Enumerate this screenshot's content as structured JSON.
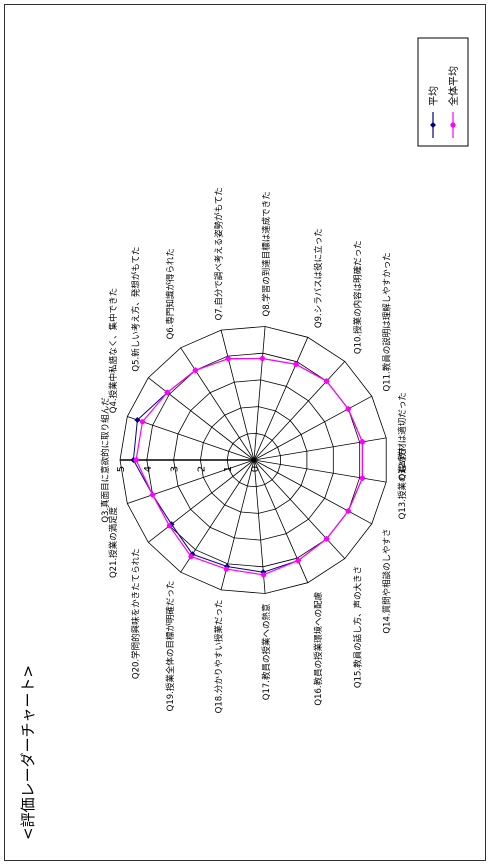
{
  "chart_data": {
    "type": "radar",
    "title": "<評価レーダーチャート>",
    "axes": [
      "Q3.真面目に意欲的に取り組んだ",
      "Q4.授業中私語なく、集中できた",
      "Q5.新しい考え方、発想がもてた",
      "Q6.専門知識が得られた",
      "Q7.自分で調べ考える姿勢がもてた",
      "Q8.学習の到達目標は達成できた",
      "Q9.シラバスは役に立った",
      "Q10.授業の内容は明確だった",
      "Q11.教員の説明は理解しやすかった",
      "Q12.教材は適切だった",
      "Q13.授業の進め方",
      "Q14.質問や相談のしやすさ",
      "Q15.教員の話し方、声の大きさ",
      "Q16.教員の授業環境への配慮",
      "Q17.教員の授業への熱意",
      "Q18.分かりやすい授業だった",
      "Q19.授業全体の目標が明確だった",
      "Q20.学問的興味をかきたてられた",
      "Q21.授業の満足度"
    ],
    "tick_labels": [
      "0",
      "1",
      "2",
      "3",
      "4",
      "5"
    ],
    "rlim": [
      0,
      5
    ],
    "series": [
      {
        "name": "平均",
        "color": "#000080",
        "marker": "diamond",
        "values": [
          4.5,
          4.6,
          4.1,
          4.0,
          3.9,
          3.8,
          3.9,
          4.0,
          4.0,
          4.1,
          4.1,
          4.0,
          4.0,
          4.1,
          4.2,
          4.1,
          4.2,
          3.9,
          4.0
        ]
      },
      {
        "name": "全体平均",
        "color": "#ff00ff",
        "marker": "circle",
        "values": [
          4.4,
          4.4,
          4.1,
          4.0,
          3.9,
          3.8,
          3.9,
          4.0,
          4.0,
          4.1,
          4.1,
          4.0,
          4.0,
          4.1,
          4.3,
          4.2,
          4.3,
          4.0,
          4.0
        ]
      }
    ],
    "legend_position": "top-right",
    "grid": true
  }
}
